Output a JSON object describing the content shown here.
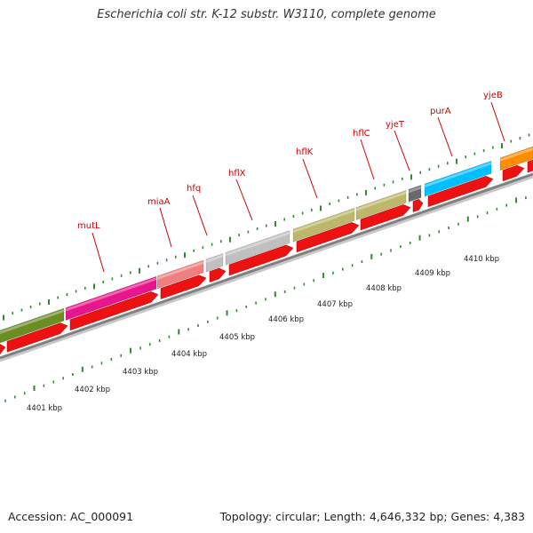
{
  "header": {
    "title": "Escherichia coli str. K-12 substr. W3110, complete genome"
  },
  "footer": {
    "accession": "Accession: AC_000091",
    "topology": "Topology: circular; Length: 4,646,332 bp; Genes: 4,383"
  },
  "map": {
    "colors": {
      "arrow": "#ee1111",
      "backbone": "#808080",
      "tick": "#2e8b2e",
      "label": "#cc0000"
    },
    "genes": [
      {
        "name": "",
        "color": "#6b8e23"
      },
      {
        "name": "mutL",
        "color": "#e8168c"
      },
      {
        "name": "miaA",
        "color": "#f08080"
      },
      {
        "name": "hfq",
        "color": "#c0c0c0"
      },
      {
        "name": "hflX",
        "color": "#c0c0c0"
      },
      {
        "name": "hflK",
        "color": "#bdb76b"
      },
      {
        "name": "hflC",
        "color": "#bdb76b"
      },
      {
        "name": "yjeT",
        "color": "#696969"
      },
      {
        "name": "purA",
        "color": "#00bfff"
      },
      {
        "name": "yjeB",
        "color": "#ff8c00"
      }
    ],
    "kbp_labels": [
      "4401 kbp",
      "4402 kbp",
      "4403 kbp",
      "4404 kbp",
      "4405 kbp",
      "4406 kbp",
      "4407 kbp",
      "4408 kbp",
      "4409 kbp",
      "4410 kbp"
    ]
  }
}
